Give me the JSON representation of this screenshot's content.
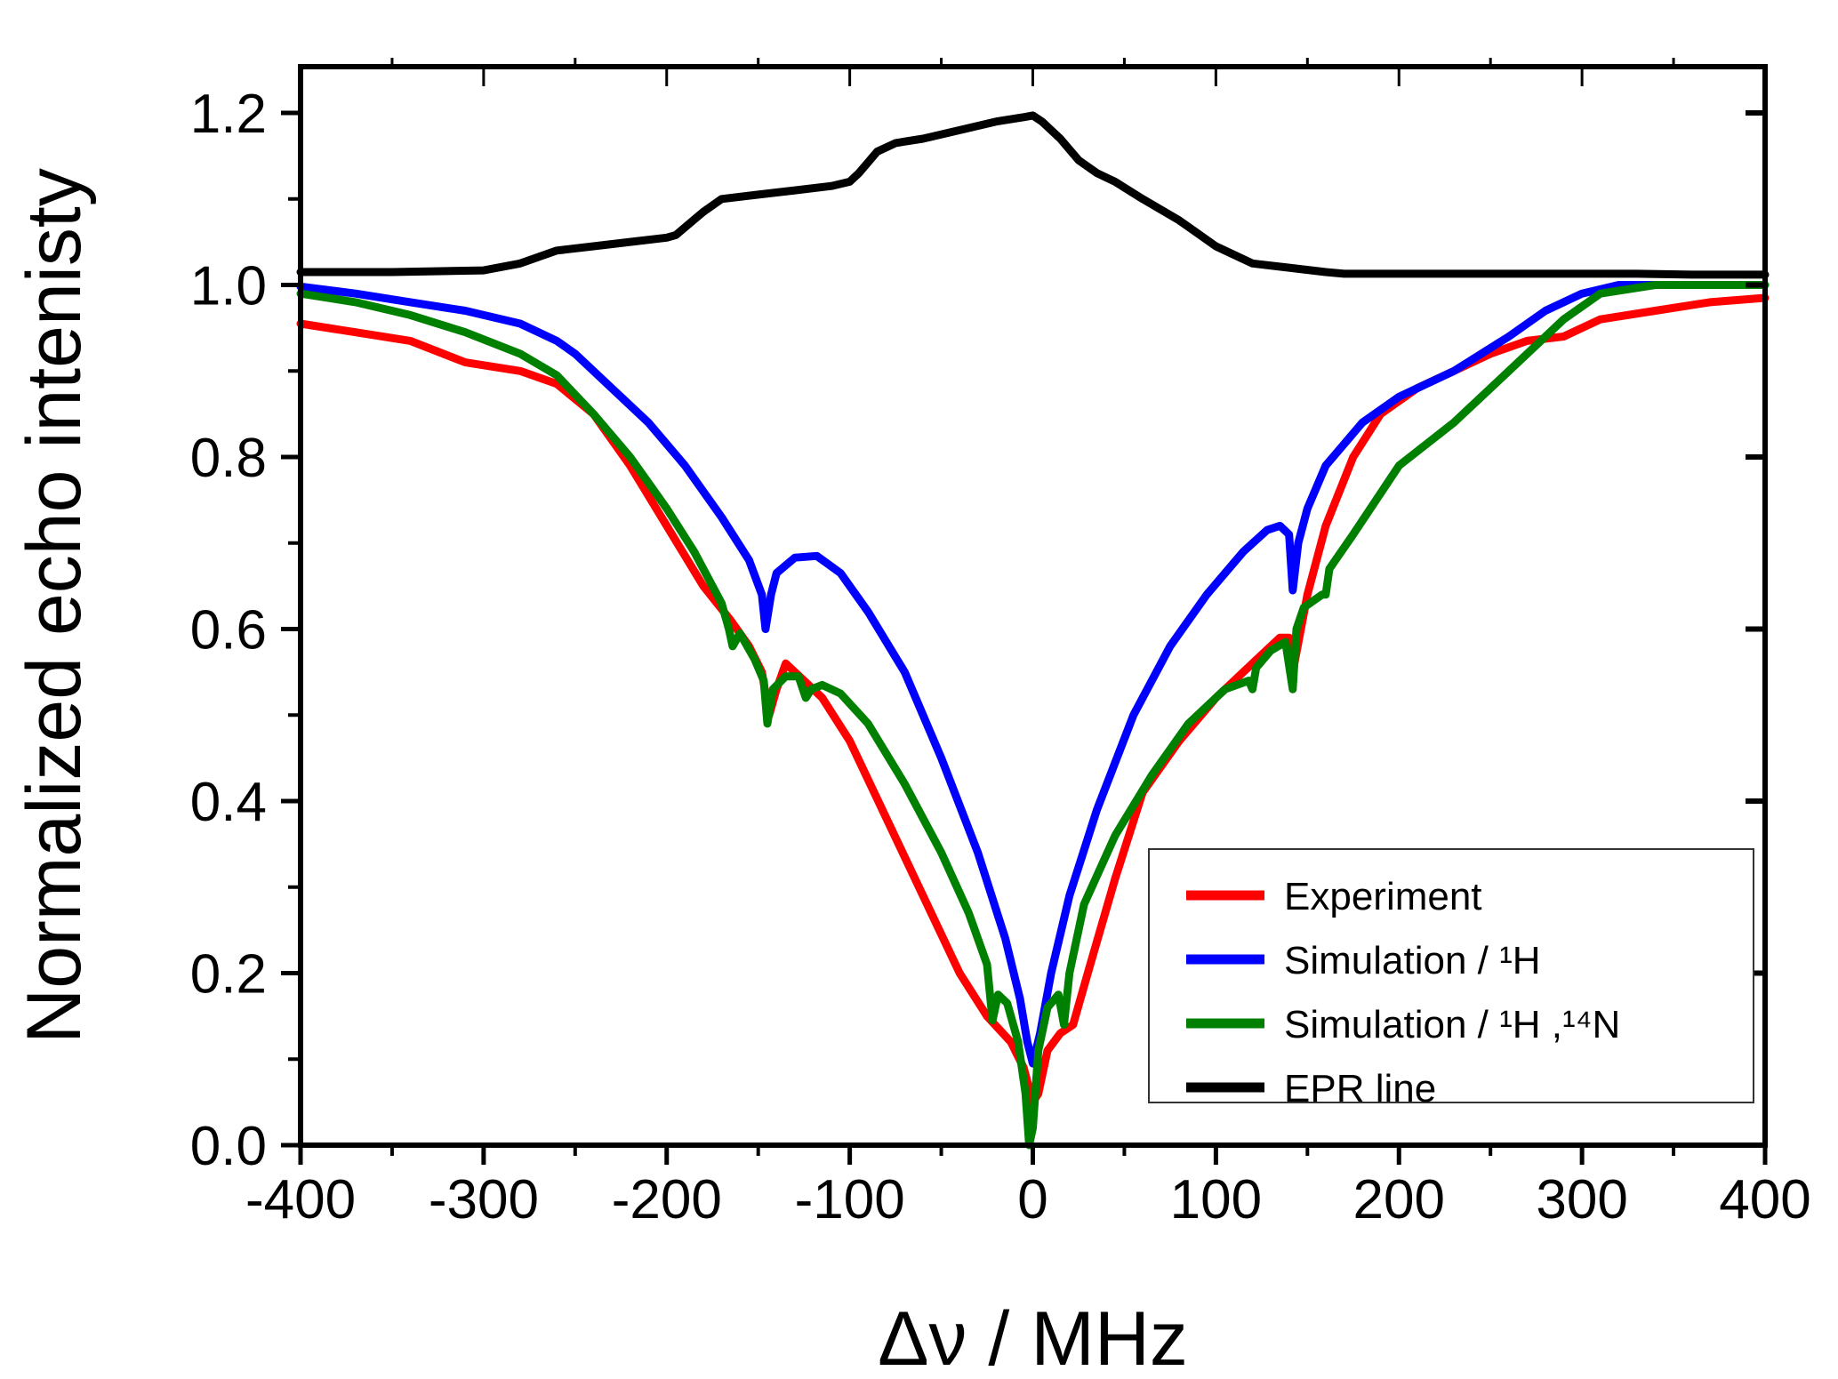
{
  "chart_data": {
    "type": "line",
    "title": "",
    "xlabel": "Δν / MHz",
    "ylabel": "Normalized echo intenisty",
    "xlim": [
      -400,
      400
    ],
    "ylim": [
      0,
      1.2
    ],
    "xticks": [
      -400,
      -300,
      -200,
      -100,
      0,
      100,
      200,
      300,
      400
    ],
    "xtick_labels": [
      "-400",
      "-300",
      "-200",
      "-100",
      "0",
      "100",
      "200",
      "300",
      "400"
    ],
    "yticks": [
      0.0,
      0.2,
      0.4,
      0.6,
      0.8,
      1.0,
      1.2
    ],
    "ytick_labels": [
      "0.0",
      "0.2",
      "0.4",
      "0.6",
      "0.8",
      "1.0",
      "1.2"
    ],
    "grid": false,
    "legend_position": "bottom-right",
    "series": [
      {
        "name": "Experiment",
        "color": "#ff0000",
        "x": [
          -400,
          -370,
          -340,
          -310,
          -280,
          -260,
          -240,
          -220,
          -200,
          -180,
          -165,
          -155,
          -148,
          -144,
          -140,
          -135,
          -125,
          -115,
          -100,
          -80,
          -60,
          -40,
          -25,
          -12,
          -5,
          0,
          3,
          8,
          15,
          22,
          30,
          45,
          60,
          80,
          100,
          120,
          135,
          140,
          142,
          150,
          160,
          175,
          190,
          210,
          230,
          250,
          270,
          290,
          310,
          340,
          370,
          400
        ],
        "y": [
          0.955,
          0.945,
          0.935,
          0.91,
          0.9,
          0.885,
          0.85,
          0.79,
          0.72,
          0.65,
          0.61,
          0.58,
          0.55,
          0.5,
          0.53,
          0.56,
          0.54,
          0.52,
          0.47,
          0.38,
          0.29,
          0.2,
          0.15,
          0.12,
          0.09,
          0.05,
          0.06,
          0.11,
          0.13,
          0.14,
          0.2,
          0.31,
          0.41,
          0.47,
          0.52,
          0.56,
          0.59,
          0.59,
          0.55,
          0.64,
          0.72,
          0.8,
          0.85,
          0.88,
          0.9,
          0.92,
          0.935,
          0.94,
          0.96,
          0.97,
          0.98,
          0.985
        ]
      },
      {
        "name": "Simulation / ¹H",
        "color": "#0000ff",
        "x": [
          -400,
          -370,
          -340,
          -310,
          -280,
          -260,
          -250,
          -230,
          -210,
          -190,
          -170,
          -155,
          -148,
          -146,
          -143,
          -140,
          -130,
          -118,
          -105,
          -90,
          -70,
          -50,
          -30,
          -15,
          -7,
          -3,
          0,
          4,
          10,
          20,
          35,
          55,
          75,
          95,
          115,
          128,
          135,
          140,
          142,
          145,
          150,
          160,
          180,
          200,
          230,
          260,
          280,
          300,
          320,
          350,
          400
        ],
        "y": [
          0.998,
          0.99,
          0.98,
          0.97,
          0.955,
          0.935,
          0.92,
          0.88,
          0.84,
          0.79,
          0.73,
          0.68,
          0.64,
          0.6,
          0.64,
          0.665,
          0.683,
          0.685,
          0.665,
          0.62,
          0.55,
          0.45,
          0.34,
          0.24,
          0.17,
          0.12,
          0.095,
          0.13,
          0.2,
          0.29,
          0.39,
          0.5,
          0.58,
          0.64,
          0.69,
          0.715,
          0.72,
          0.71,
          0.645,
          0.7,
          0.74,
          0.79,
          0.84,
          0.87,
          0.9,
          0.94,
          0.97,
          0.99,
          1.0,
          1.0,
          1.0
        ]
      },
      {
        "name": "Simulation / ¹H ,¹⁴N",
        "color": "#008000",
        "x": [
          -400,
          -370,
          -340,
          -310,
          -280,
          -260,
          -240,
          -220,
          -200,
          -185,
          -170,
          -166,
          -164,
          -160,
          -152,
          -147,
          -145,
          -142,
          -135,
          -128,
          -124,
          -121,
          -115,
          -105,
          -90,
          -70,
          -50,
          -35,
          -25,
          -22,
          -19,
          -14,
          -8,
          -4,
          -2,
          0,
          3,
          8,
          14,
          17,
          20,
          28,
          45,
          65,
          85,
          105,
          118,
          120,
          122,
          130,
          138,
          142,
          144,
          148,
          158,
          160,
          162,
          175,
          200,
          230,
          260,
          290,
          310,
          340,
          400
        ],
        "y": [
          0.99,
          0.98,
          0.965,
          0.945,
          0.92,
          0.895,
          0.85,
          0.8,
          0.74,
          0.69,
          0.63,
          0.6,
          0.58,
          0.595,
          0.565,
          0.54,
          0.49,
          0.53,
          0.545,
          0.545,
          0.52,
          0.53,
          0.535,
          0.525,
          0.49,
          0.42,
          0.34,
          0.27,
          0.21,
          0.145,
          0.175,
          0.165,
          0.12,
          0.06,
          0.0,
          0.02,
          0.11,
          0.16,
          0.175,
          0.14,
          0.2,
          0.28,
          0.36,
          0.43,
          0.49,
          0.53,
          0.54,
          0.53,
          0.555,
          0.575,
          0.585,
          0.53,
          0.6,
          0.625,
          0.64,
          0.64,
          0.67,
          0.71,
          0.79,
          0.84,
          0.9,
          0.96,
          0.99,
          1.0,
          1.0
        ]
      },
      {
        "name": "EPR line",
        "color": "#000000",
        "x": [
          -400,
          -350,
          -300,
          -280,
          -260,
          -240,
          -220,
          -200,
          -195,
          -180,
          -170,
          -150,
          -130,
          -110,
          -100,
          -95,
          -85,
          -75,
          -60,
          -40,
          -20,
          -5,
          0,
          5,
          15,
          25,
          35,
          45,
          60,
          80,
          100,
          120,
          140,
          160,
          170,
          190,
          210,
          240,
          270,
          300,
          330,
          360,
          400
        ],
        "y": [
          1.015,
          1.015,
          1.017,
          1.025,
          1.04,
          1.045,
          1.05,
          1.055,
          1.058,
          1.085,
          1.1,
          1.105,
          1.11,
          1.115,
          1.12,
          1.13,
          1.155,
          1.165,
          1.17,
          1.18,
          1.19,
          1.195,
          1.197,
          1.19,
          1.17,
          1.145,
          1.13,
          1.12,
          1.1,
          1.075,
          1.045,
          1.025,
          1.02,
          1.015,
          1.013,
          1.013,
          1.013,
          1.013,
          1.013,
          1.013,
          1.013,
          1.012,
          1.012
        ]
      }
    ]
  }
}
